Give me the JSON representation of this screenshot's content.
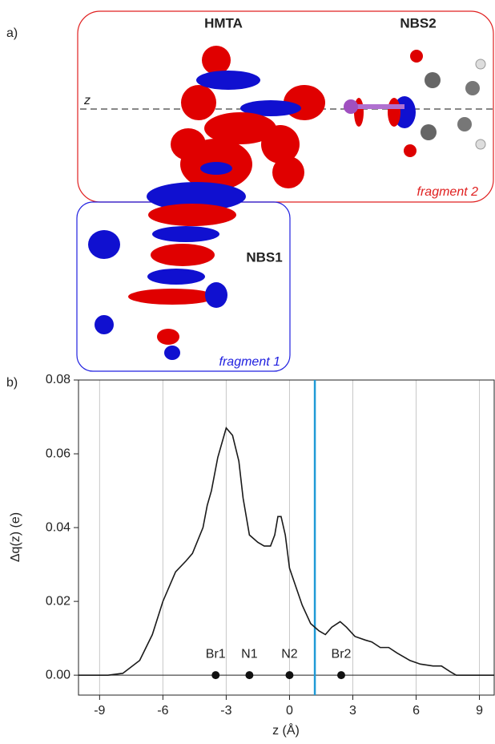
{
  "panel_a": {
    "panel_label": "a)",
    "hmta": "HMTA",
    "nbs2": "NBS2",
    "nbs1": "NBS1",
    "axis": "z",
    "fragment2": "fragment 2",
    "fragment1": "fragment 1"
  },
  "chart_data": {
    "type": "line",
    "panel_label": "b)",
    "x_label": "z (Å)",
    "y_label": "Δq(z) (e)",
    "xlim": [
      -10,
      9.7
    ],
    "ylim": [
      -0.0054,
      0.08
    ],
    "xticks": [
      -9,
      -6,
      -3,
      0,
      3,
      6,
      9
    ],
    "yticks": [
      {
        "value": 0,
        "label": "0.00"
      },
      {
        "value": 0.02,
        "label": "0.02"
      },
      {
        "value": 0.04,
        "label": "0.04"
      },
      {
        "value": 0.06,
        "label": "0.06"
      },
      {
        "value": 0.08,
        "label": "0.08"
      }
    ],
    "grid": true,
    "x": [
      -10,
      -8.6,
      -7.9,
      -7.1,
      -6.5,
      -6.0,
      -5.4,
      -4.9,
      -4.6,
      -4.1,
      -3.9,
      -3.7,
      -3.4,
      -3.1,
      -3.0,
      -2.7,
      -2.4,
      -2.2,
      -1.9,
      -1.7,
      -1.5,
      -1.2,
      -0.9,
      -0.7,
      -0.55,
      -0.4,
      -0.2,
      0.0,
      0.3,
      0.6,
      1.0,
      1.4,
      1.7,
      2.0,
      2.4,
      2.7,
      3.1,
      3.6,
      3.9,
      4.3,
      4.7,
      5.1,
      5.7,
      6.2,
      6.8,
      7.2,
      7.6,
      7.9,
      9.7
    ],
    "series": [
      {
        "color": "#1a1a1a",
        "values": [
          0,
          0,
          0.0005,
          0.004,
          0.011,
          0.02,
          0.028,
          0.031,
          0.033,
          0.04,
          0.046,
          0.05,
          0.059,
          0.065,
          0.067,
          0.065,
          0.058,
          0.048,
          0.038,
          0.037,
          0.036,
          0.035,
          0.035,
          0.038,
          0.043,
          0.043,
          0.038,
          0.029,
          0.024,
          0.019,
          0.014,
          0.012,
          0.011,
          0.013,
          0.0145,
          0.013,
          0.0105,
          0.0095,
          0.009,
          0.0075,
          0.0075,
          0.006,
          0.004,
          0.003,
          0.0025,
          0.0025,
          0.001,
          0,
          0
        ]
      }
    ],
    "atoms": {
      "labels": [
        "Br1",
        "N1",
        "N2",
        "Br2"
      ],
      "x": [
        -3.5,
        -1.9,
        0,
        2.45
      ],
      "values": [
        0,
        0,
        0,
        0
      ],
      "color": "#111111"
    },
    "marker_line": {
      "x": 1.2,
      "color": "#1f9ad6"
    }
  }
}
